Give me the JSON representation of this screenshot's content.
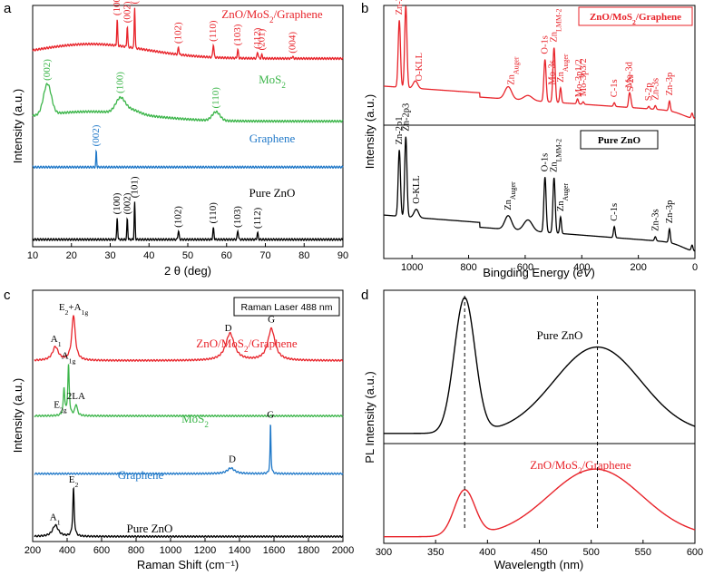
{
  "chart_data": [
    {
      "panel": "a",
      "type": "line",
      "xlabel": "2 θ (deg)",
      "ylabel": "Intensity (a.u.)",
      "xlim": [
        10,
        90
      ],
      "xticks": [
        10,
        20,
        30,
        40,
        50,
        60,
        70,
        80,
        90
      ],
      "series": [
        {
          "name": "ZnO/MoS2/Graphene",
          "label": "ZnO/MoS",
          "label_sub": "2",
          "label_tail": "/Graphene",
          "color": "#e8232a",
          "offset": 0.78,
          "background": 0.06,
          "peaks": [
            [
              31.8,
              0.6,
              0.12
            ],
            [
              34.4,
              0.48,
              0.12
            ],
            [
              36.3,
              0.95,
              0.12
            ],
            [
              47.6,
              0.16,
              0.15
            ],
            [
              56.6,
              0.3,
              0.15
            ],
            [
              62.9,
              0.19,
              0.15
            ],
            [
              68.0,
              0.15,
              0.15
            ],
            [
              69.1,
              0.08,
              0.15
            ],
            [
              77.0,
              0.04,
              0.2
            ]
          ],
          "hkl": [
            [
              "(100)",
              31.8
            ],
            [
              "(002)",
              34.4
            ],
            [
              "(101)",
              36.3
            ],
            [
              "(102)",
              47.6
            ],
            [
              "(110)",
              56.6
            ],
            [
              "(103)",
              62.9
            ],
            [
              "(112)",
              68.0
            ],
            [
              "(201)",
              69.1
            ],
            [
              "(004)",
              77.0
            ]
          ]
        },
        {
          "name": "MoS2",
          "label": "MoS",
          "label_sub": "2",
          "label_tail": "",
          "color": "#3cb54a",
          "offset": 0.52,
          "background": 0.04,
          "peaks": [
            [
              13.8,
              0.7,
              1.0
            ],
            [
              32.6,
              0.32,
              1.2
            ],
            [
              35.5,
              0.1,
              2.0
            ],
            [
              57.3,
              0.2,
              1.0
            ]
          ],
          "hkl": [
            [
              "(002)",
              13.8
            ],
            [
              "(100)",
              32.6
            ],
            [
              "(110)",
              57.3
            ]
          ]
        },
        {
          "name": "Graphene",
          "label": "Graphene",
          "label_sub": "",
          "label_tail": "",
          "color": "#1f78c8",
          "offset": 0.33,
          "background": 0.0,
          "peaks": [
            [
              26.4,
              0.38,
              0.1
            ]
          ],
          "hkl": [
            [
              "(002)",
              26.4
            ]
          ]
        },
        {
          "name": "Pure ZnO",
          "label": "Pure ZnO",
          "label_sub": "",
          "label_tail": "",
          "color": "#000000",
          "offset": 0.03,
          "background": 0.0,
          "peaks": [
            [
              31.8,
              0.5,
              0.12
            ],
            [
              34.4,
              0.48,
              0.12
            ],
            [
              36.3,
              0.85,
              0.12
            ],
            [
              47.6,
              0.2,
              0.15
            ],
            [
              56.6,
              0.26,
              0.15
            ],
            [
              62.9,
              0.2,
              0.15
            ],
            [
              68.0,
              0.15,
              0.15
            ]
          ],
          "hkl": [
            [
              "(100)",
              31.8
            ],
            [
              "(002)",
              34.4
            ],
            [
              "(101)",
              36.3
            ],
            [
              "(102)",
              47.6
            ],
            [
              "(110)",
              56.6
            ],
            [
              "(103)",
              62.9
            ],
            [
              "(112)",
              68.0
            ]
          ]
        }
      ]
    },
    {
      "panel": "b",
      "type": "line",
      "xlabel": "Bingding Energy (eV)",
      "xlabel_main": "Bingding Energy (",
      "xlabel_unit": "eV",
      "xlabel_close": ")",
      "ylabel": "Intensity (a.u.)",
      "xlim": [
        1100,
        0
      ],
      "xticks": [
        1000,
        800,
        600,
        400,
        200,
        0
      ],
      "series": [
        {
          "name": "ZnO/MoS2/Graphene",
          "color": "#e8232a",
          "offset": 0.62,
          "legend": {
            "text": "ZnO/MoS",
            "sub": "2",
            "tail": "/Graphene"
          },
          "peaks": [
            [
              1045,
              0.27,
              4
            ],
            [
              1022,
              0.33,
              4
            ],
            [
              988,
              0.03,
              8
            ],
            [
              660,
              0.05,
              12
            ],
            [
              590,
              0.02,
              15
            ],
            [
              530,
              0.17,
              4
            ],
            [
              498,
              0.22,
              4
            ],
            [
              475,
              0.06,
              3
            ],
            [
              415,
              0.02,
              3
            ],
            [
              395,
              0.01,
              3
            ],
            [
              285,
              0.015,
              3
            ],
            [
              232,
              0.05,
              3
            ],
            [
              227,
              0.03,
              3
            ],
            [
              163,
              0.01,
              3
            ],
            [
              140,
              0.015,
              3
            ],
            [
              90,
              0.04,
              3
            ],
            [
              10,
              0.02,
              3
            ]
          ],
          "labels": [
            [
              "Zn-2p1",
              1045
            ],
            [
              "Zn-2p3",
              1022
            ],
            [
              "O-KLL",
              975
            ],
            [
              "Zn_Auger",
              650
            ],
            [
              "O-1s",
              530
            ],
            [
              "Mo-3s",
              505
            ],
            [
              "Zn_LMM-2",
              498
            ],
            [
              "Zn_Auger",
              475
            ],
            [
              "Mo-3p1/2",
              410
            ],
            [
              "Mo-3p3/2",
              395
            ],
            [
              "C-1s",
              285
            ],
            [
              "Mo-3d",
              232
            ],
            [
              "S-2s",
              227
            ],
            [
              "S-2p",
              163
            ],
            [
              "Zn-3s",
              140
            ],
            [
              "Zn-3p",
              90
            ]
          ]
        },
        {
          "name": "Pure ZnO",
          "color": "#000000",
          "offset": 0.03,
          "legend": {
            "text": "Pure ZnO",
            "sub": "",
            "tail": ""
          },
          "peaks": [
            [
              1045,
              0.24,
              4
            ],
            [
              1022,
              0.29,
              4
            ],
            [
              985,
              0.03,
              8
            ],
            [
              660,
              0.05,
              12
            ],
            [
              590,
              0.04,
              15
            ],
            [
              530,
              0.2,
              4
            ],
            [
              498,
              0.2,
              4
            ],
            [
              475,
              0.06,
              3
            ],
            [
              285,
              0.04,
              3
            ],
            [
              140,
              0.015,
              3
            ],
            [
              90,
              0.05,
              3
            ],
            [
              10,
              0.02,
              3
            ]
          ],
          "labels": [
            [
              "Zn-2p1",
              1045
            ],
            [
              "Zn-2p3",
              1022
            ],
            [
              "O-KLL",
              985
            ],
            [
              "Zn_Auger",
              660
            ],
            [
              "O-1s",
              530
            ],
            [
              "Zn_LMM-2",
              498
            ],
            [
              "Zn_Auger",
              475
            ],
            [
              "C-1s",
              285
            ],
            [
              "Zn-3s",
              140
            ],
            [
              "Zn-3p",
              90
            ]
          ]
        }
      ]
    },
    {
      "panel": "c",
      "type": "line",
      "xlabel": "Raman Shift (cm⁻¹)",
      "ylabel": "Intensity (a.u.)",
      "xlim": [
        200,
        2000
      ],
      "xticks": [
        200,
        400,
        600,
        800,
        1000,
        1200,
        1400,
        1600,
        1800,
        2000
      ],
      "legend_box": "Raman Laser 488 nm",
      "series": [
        {
          "name": "ZnO/MoS2/Graphene",
          "label": "ZnO/MoS",
          "label_sub": "2",
          "label_tail": "/Graphene",
          "color": "#e8232a",
          "offset": 0.72,
          "peaks": [
            [
              332,
              0.06,
              20
            ],
            [
              437,
              0.2,
              12
            ],
            [
              1345,
              0.12,
              30
            ],
            [
              1585,
              0.14,
              25
            ]
          ],
          "annotations": [
            [
              "A",
              "1",
              335
            ],
            [
              "E",
              "2",
              437,
              "+A",
              "1g"
            ],
            [
              "D",
              "",
              1335
            ],
            [
              "G",
              "",
              1585
            ]
          ]
        },
        {
          "name": "MoS2",
          "label": "MoS",
          "label_sub": "2",
          "label_tail": "",
          "color": "#3cb54a",
          "offset": 0.5,
          "peaks": [
            [
              382,
              0.12,
              5
            ],
            [
              408,
              0.22,
              5
            ],
            [
              452,
              0.05,
              8
            ]
          ],
          "annotations": [
            [
              "E",
              "2g",
              360
            ],
            [
              "A",
              "1g",
              408
            ],
            [
              "2LA",
              "",
              452
            ]
          ]
        },
        {
          "name": "Graphene",
          "label": "Graphene",
          "label_sub": "",
          "label_tail": "",
          "color": "#1f78c8",
          "offset": 0.27,
          "peaks": [
            [
              1350,
              0.025,
              25
            ],
            [
              1580,
              0.22,
              3
            ]
          ],
          "annotations": [
            [
              "D",
              "",
              1358
            ],
            [
              "G",
              "",
              1580
            ]
          ]
        },
        {
          "name": "Pure ZnO",
          "label": "Pure ZnO",
          "label_sub": "",
          "label_tail": "",
          "color": "#000000",
          "offset": 0.02,
          "peaks": [
            [
              332,
              0.05,
              20
            ],
            [
              437,
              0.21,
              5
            ]
          ],
          "annotations": [
            [
              "A",
              "1",
              330
            ],
            [
              "E",
              "2",
              437
            ]
          ]
        }
      ]
    },
    {
      "panel": "d",
      "type": "line",
      "xlabel": "Wavelength (nm)",
      "ylabel": "PL Intensity (a.u.)",
      "xlim": [
        300,
        600
      ],
      "xticks": [
        300,
        350,
        400,
        450,
        500,
        550,
        600
      ],
      "reference_lines": [
        378,
        506
      ],
      "series": [
        {
          "name": "Pure ZnO",
          "label": "Pure ZnO",
          "label_sub": "",
          "label_tail": "",
          "color": "#000000",
          "peaks": [
            [
              378,
              1.0,
              10
            ],
            [
              506,
              0.64,
              42
            ]
          ]
        },
        {
          "name": "ZnO/MoS2/Graphene",
          "label": "ZnO/MoS",
          "label_sub": "2",
          "label_tail": "/Graphene",
          "color": "#e8232a",
          "peaks": [
            [
              378,
              0.52,
              10
            ],
            [
              504,
              0.77,
              45
            ]
          ]
        }
      ]
    }
  ],
  "panels": {
    "a": "a",
    "b": "b",
    "c": "c",
    "d": "d"
  }
}
